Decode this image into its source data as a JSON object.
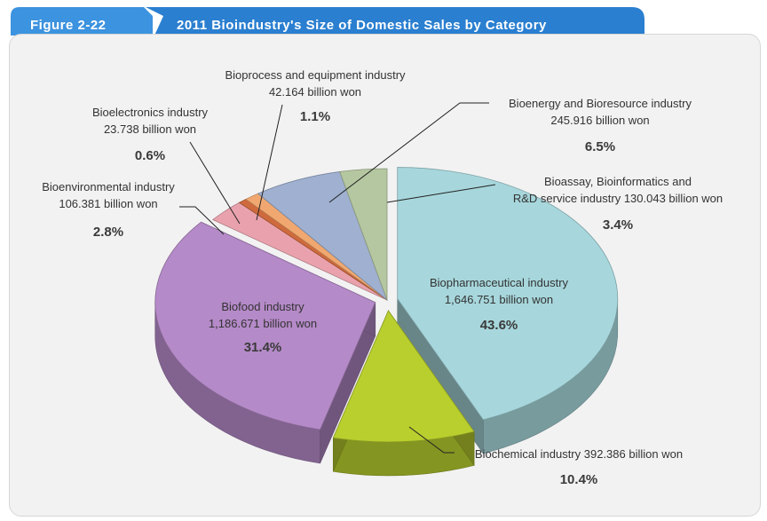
{
  "figure_label": "Figure 2-22",
  "figure_title": "2011 Bioindustry's Size of Domestic Sales by Category",
  "chart_data": {
    "type": "pie",
    "title": "2011 Bioindustry's Size of Domestic Sales by Category",
    "unit": "billion won",
    "slices": [
      {
        "name": "Biopharmaceutical industry",
        "value": 1646.751,
        "value_label": "1,646.751 billion won",
        "percent": 43.6,
        "percent_label": "43.6%",
        "color": "#a7d7dc"
      },
      {
        "name": "Biochemical industry",
        "value": 392.386,
        "value_label": "392.386 billion won",
        "percent": 10.4,
        "percent_label": "10.4%",
        "color": "#b9cf2e"
      },
      {
        "name": "Biofood industry",
        "value": 1186.671,
        "value_label": "1,186.671 billion won",
        "percent": 31.4,
        "percent_label": "31.4%",
        "color": "#b58ac8"
      },
      {
        "name": "Bioenvironmental industry",
        "value": 106.381,
        "value_label": "106.381 billion won",
        "percent": 2.8,
        "percent_label": "2.8%",
        "color": "#e9a2ad"
      },
      {
        "name": "Bioelectronics industry",
        "value": 23.738,
        "value_label": "23.738 billion won",
        "percent": 0.6,
        "percent_label": "0.6%",
        "color": "#cf6a3c"
      },
      {
        "name": "Bioprocess and equipment industry",
        "value": 42.164,
        "value_label": "42.164 billion won",
        "percent": 1.1,
        "percent_label": "1.1%",
        "color": "#f0a870"
      },
      {
        "name": "Bioenergy and Bioresource industry",
        "value": 245.916,
        "value_label": "245.916 billion won",
        "percent": 6.5,
        "percent_label": "6.5%",
        "color": "#9fb0d0"
      },
      {
        "name": "Bioassay, Bioinformatics and R&D service industry",
        "value": 130.043,
        "value_label": "130.043 billion won",
        "percent": 3.4,
        "percent_label": "3.4%",
        "color": "#b5c7a0"
      }
    ],
    "label_lines": {
      "Biopharmaceutical industry": [
        "Biopharmaceutical industry",
        "1,646.751 billion won"
      ],
      "Biochemical industry": [
        "Biochemical industry 392.386 billion won"
      ],
      "Biofood industry": [
        "Biofood industry",
        "1,186.671 billion won"
      ],
      "Bioenvironmental industry": [
        "Bioenvironmental industry",
        "106.381 billion won"
      ],
      "Bioelectronics industry": [
        "Bioelectronics industry",
        "23.738 billion won"
      ],
      "Bioprocess and equipment industry": [
        "Bioprocess and equipment industry",
        "42.164 billion won"
      ],
      "Bioenergy and Bioresource industry": [
        "Bioenergy and Bioresource industry",
        "245.916 billion won"
      ],
      "Bioassay, Bioinformatics and R&D service industry": [
        "Bioassay, Bioinformatics and",
        "R&D service industry 130.043 billion won"
      ]
    }
  },
  "colors": {
    "header_blue": "#2f86d6",
    "header_dark": "#1d63ad",
    "panel_bg": "#f2f2f2"
  }
}
